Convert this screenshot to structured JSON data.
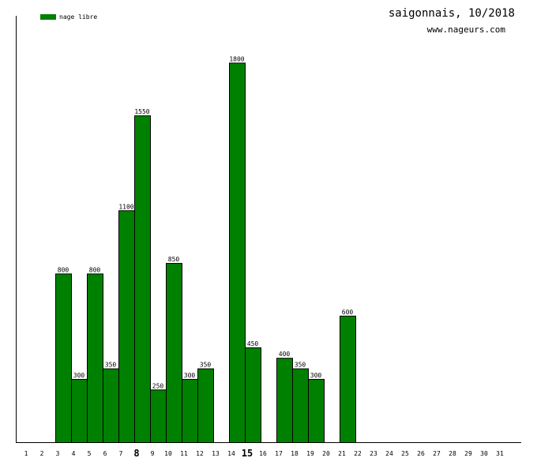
{
  "header": {
    "title": "saigonnais, 10/2018",
    "site": "www.nageurs.com"
  },
  "legend": {
    "label": "nage libre",
    "color": "#008000"
  },
  "chart_data": {
    "type": "bar",
    "categories": [
      "1",
      "2",
      "3",
      "4",
      "5",
      "6",
      "7",
      "8",
      "9",
      "10",
      "11",
      "12",
      "13",
      "14",
      "15",
      "16",
      "17",
      "18",
      "19",
      "20",
      "21",
      "22",
      "23",
      "24",
      "25",
      "26",
      "27",
      "28",
      "29",
      "30",
      "31"
    ],
    "series": [
      {
        "name": "nage libre",
        "values": [
          0,
          0,
          800,
          300,
          800,
          350,
          1100,
          1550,
          250,
          850,
          300,
          350,
          0,
          1800,
          450,
          0,
          400,
          350,
          300,
          0,
          600,
          0,
          0,
          0,
          0,
          0,
          0,
          0,
          0,
          0,
          0
        ]
      }
    ],
    "bold_ticks": [
      "8",
      "15"
    ],
    "ylim": [
      0,
      1950
    ],
    "grid": false,
    "legend_position": "top-left",
    "bar_color": "#008000",
    "title": "saigonnais, 10/2018",
    "xlabel": "",
    "ylabel": ""
  }
}
